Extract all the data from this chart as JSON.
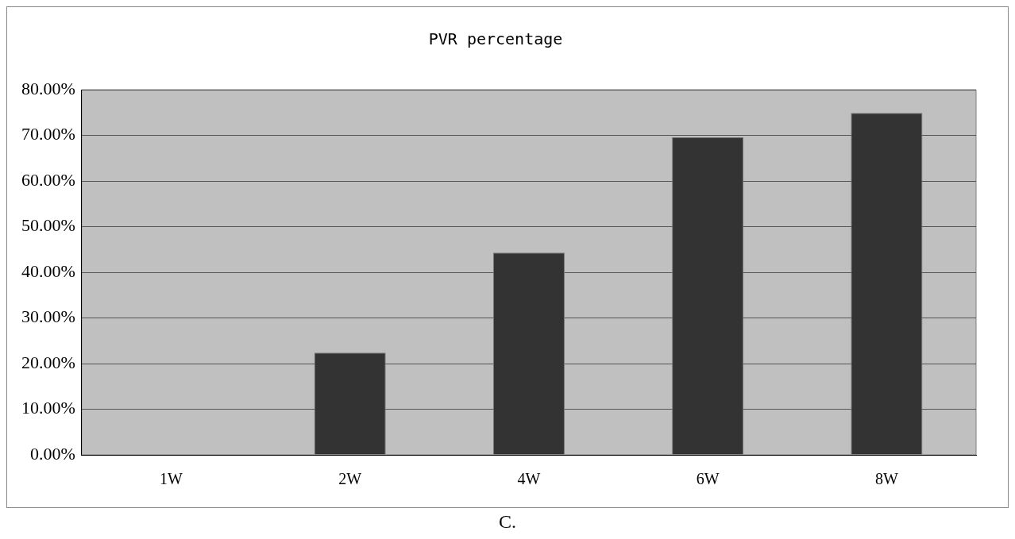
{
  "chart_data": {
    "type": "bar",
    "title": "PVR percentage",
    "categories": [
      "1W",
      "2W",
      "4W",
      "6W",
      "8W"
    ],
    "values": [
      0,
      22.4,
      44.3,
      69.6,
      74.9
    ],
    "color": "#333333",
    "ylim": [
      0,
      80
    ],
    "yticks": [
      {
        "value": 0,
        "label": "0.00%"
      },
      {
        "value": 10,
        "label": "10.00%"
      },
      {
        "value": 20,
        "label": "20.00%"
      },
      {
        "value": 30,
        "label": "30.00%"
      },
      {
        "value": 40,
        "label": "40.00%"
      },
      {
        "value": 50,
        "label": "50.00%"
      },
      {
        "value": 60,
        "label": "60.00%"
      },
      {
        "value": 70,
        "label": "70.00%"
      },
      {
        "value": 80,
        "label": "80.00%"
      }
    ],
    "grid": "y",
    "legend": false,
    "annotations": [
      "C."
    ]
  }
}
